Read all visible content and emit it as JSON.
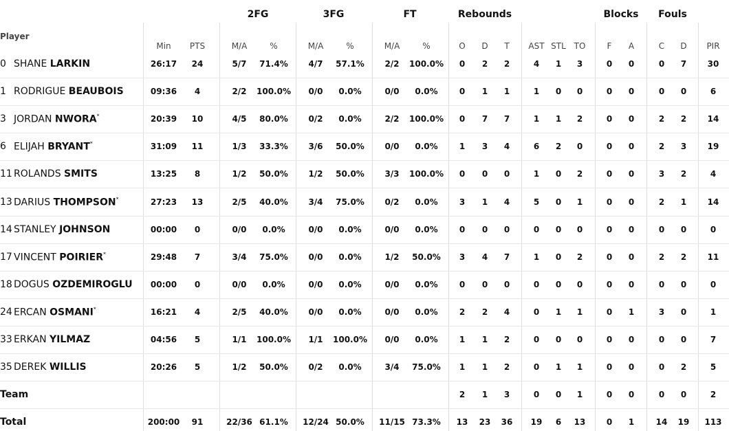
{
  "table": {
    "group_headers": [
      "2FG",
      "3FG",
      "FT",
      "Rebounds",
      "Blocks",
      "Fouls"
    ],
    "player_header": "Player",
    "columns": [
      "Min",
      "PTS",
      "M/A",
      "%",
      "M/A",
      "%",
      "M/A",
      "%",
      "O",
      "D",
      "T",
      "AST",
      "STL",
      "TO",
      "F",
      "A",
      "C",
      "D",
      "PIR"
    ],
    "rows": [
      {
        "number": "0",
        "first_name": "SHANE",
        "last_name": "LARKIN",
        "cells": [
          "26:17",
          "24",
          "5/7",
          "71.4%",
          "4/7",
          "57.1%",
          "2/2",
          "100.0%",
          "0",
          "2",
          "2",
          "4",
          "1",
          "3",
          "0",
          "0",
          "0",
          "7",
          "30"
        ]
      },
      {
        "number": "1",
        "first_name": "RODRIGUE",
        "last_name": "BEAUBOIS",
        "cells": [
          "09:36",
          "4",
          "2/2",
          "100.0%",
          "0/0",
          "0.0%",
          "0/0",
          "0.0%",
          "0",
          "1",
          "1",
          "1",
          "0",
          "0",
          "0",
          "0",
          "0",
          "0",
          "6"
        ]
      },
      {
        "number": "3",
        "first_name": "JORDAN",
        "last_name": "NWORA",
        "marker": "*",
        "cells": [
          "20:39",
          "10",
          "4/5",
          "80.0%",
          "0/2",
          "0.0%",
          "2/2",
          "100.0%",
          "0",
          "7",
          "7",
          "1",
          "1",
          "2",
          "0",
          "0",
          "2",
          "2",
          "14"
        ]
      },
      {
        "number": "6",
        "first_name": "ELIJAH",
        "last_name": "BRYANT",
        "marker": "*",
        "cells": [
          "31:09",
          "11",
          "1/3",
          "33.3%",
          "3/6",
          "50.0%",
          "0/0",
          "0.0%",
          "1",
          "3",
          "4",
          "6",
          "2",
          "0",
          "0",
          "0",
          "2",
          "3",
          "19"
        ]
      },
      {
        "number": "11",
        "first_name": "ROLANDS",
        "last_name": "SMITS",
        "cells": [
          "13:25",
          "8",
          "1/2",
          "50.0%",
          "1/2",
          "50.0%",
          "3/3",
          "100.0%",
          "0",
          "0",
          "0",
          "1",
          "0",
          "2",
          "0",
          "0",
          "3",
          "2",
          "4"
        ]
      },
      {
        "number": "13",
        "first_name": "DARIUS",
        "last_name": "THOMPSON",
        "marker": "*",
        "cells": [
          "27:23",
          "13",
          "2/5",
          "40.0%",
          "3/4",
          "75.0%",
          "0/2",
          "0.0%",
          "3",
          "1",
          "4",
          "5",
          "0",
          "1",
          "0",
          "0",
          "2",
          "1",
          "14"
        ]
      },
      {
        "number": "14",
        "first_name": "STANLEY",
        "last_name": "JOHNSON",
        "cells": [
          "00:00",
          "0",
          "0/0",
          "0.0%",
          "0/0",
          "0.0%",
          "0/0",
          "0.0%",
          "0",
          "0",
          "0",
          "0",
          "0",
          "0",
          "0",
          "0",
          "0",
          "0",
          "0"
        ]
      },
      {
        "number": "17",
        "first_name": "VINCENT",
        "last_name": "POIRIER",
        "marker": "*",
        "cells": [
          "29:48",
          "7",
          "3/4",
          "75.0%",
          "0/0",
          "0.0%",
          "1/2",
          "50.0%",
          "3",
          "4",
          "7",
          "1",
          "0",
          "2",
          "0",
          "0",
          "2",
          "2",
          "11"
        ]
      },
      {
        "number": "18",
        "first_name": "DOGUS",
        "last_name": "OZDEMIROGLU",
        "cells": [
          "00:00",
          "0",
          "0/0",
          "0.0%",
          "0/0",
          "0.0%",
          "0/0",
          "0.0%",
          "0",
          "0",
          "0",
          "0",
          "0",
          "0",
          "0",
          "0",
          "0",
          "0",
          "0"
        ]
      },
      {
        "number": "24",
        "first_name": "ERCAN",
        "last_name": "OSMANI",
        "marker": "*",
        "cells": [
          "16:21",
          "4",
          "2/5",
          "40.0%",
          "0/0",
          "0.0%",
          "0/0",
          "0.0%",
          "2",
          "2",
          "4",
          "0",
          "1",
          "1",
          "0",
          "1",
          "3",
          "0",
          "1"
        ]
      },
      {
        "number": "33",
        "first_name": "ERKAN",
        "last_name": "YILMAZ",
        "cells": [
          "04:56",
          "5",
          "1/1",
          "100.0%",
          "1/1",
          "100.0%",
          "0/0",
          "0.0%",
          "1",
          "1",
          "2",
          "0",
          "0",
          "0",
          "0",
          "0",
          "0",
          "0",
          "7"
        ]
      },
      {
        "number": "35",
        "first_name": "DEREK",
        "last_name": "WILLIS",
        "cells": [
          "20:26",
          "5",
          "1/2",
          "50.0%",
          "0/2",
          "0.0%",
          "3/4",
          "75.0%",
          "1",
          "1",
          "2",
          "0",
          "1",
          "1",
          "0",
          "0",
          "0",
          "2",
          "5"
        ]
      },
      {
        "label": "Team",
        "cells": [
          null,
          null,
          null,
          null,
          null,
          null,
          null,
          null,
          "2",
          "1",
          "3",
          "0",
          "0",
          "1",
          "0",
          "0",
          "0",
          "0",
          "2"
        ]
      },
      {
        "label": "Total",
        "cells": [
          "200:00",
          "91",
          "22/36",
          "61.1%",
          "12/24",
          "50.0%",
          "11/15",
          "73.3%",
          "13",
          "23",
          "36",
          "19",
          "6",
          "13",
          "0",
          "1",
          "14",
          "19",
          "113"
        ]
      }
    ]
  }
}
